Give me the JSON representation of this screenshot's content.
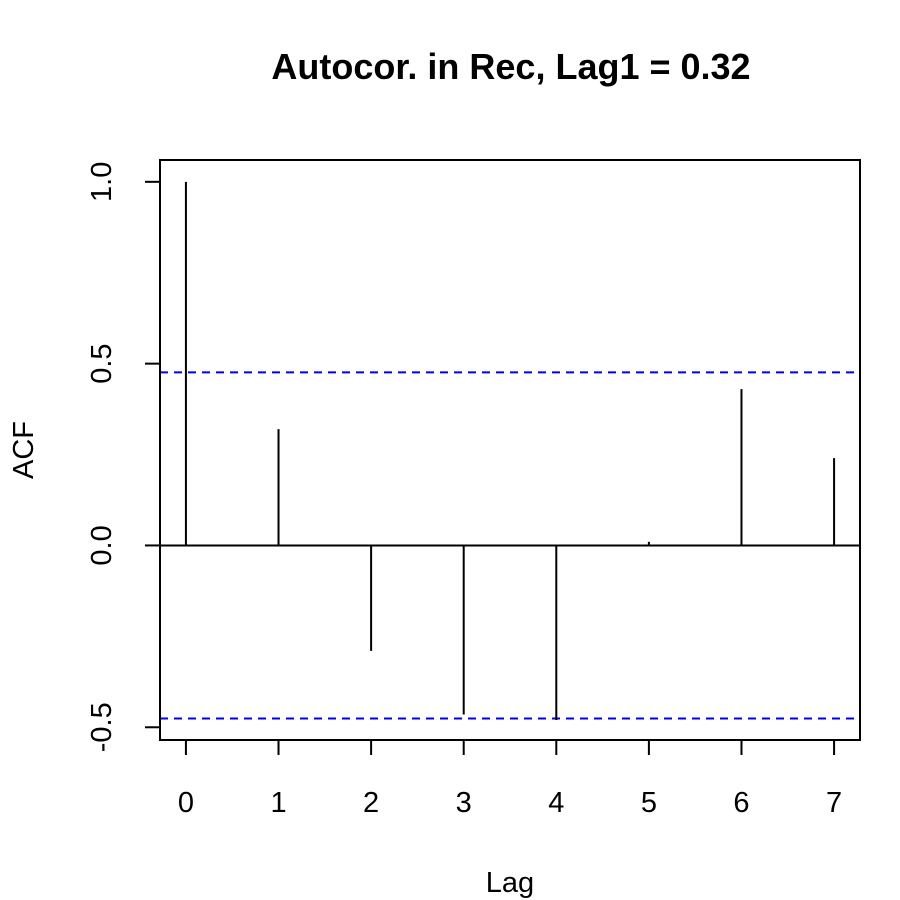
{
  "chart_data": {
    "type": "bar",
    "title": "Autocor. in Rec, Lag1 = 0.32",
    "xlabel": "Lag",
    "ylabel": "ACF",
    "x": [
      0,
      1,
      2,
      3,
      4,
      5,
      6,
      7
    ],
    "values": [
      1.0,
      0.32,
      -0.29,
      -0.465,
      -0.48,
      0.01,
      0.43,
      0.24
    ],
    "x_ticks": [
      "0",
      "1",
      "2",
      "3",
      "4",
      "5",
      "6",
      "7"
    ],
    "y_ticks": [
      "-0.5",
      "0.0",
      "0.5",
      "1.0"
    ],
    "xlim": [
      -0.28,
      7.28
    ],
    "ylim": [
      -0.535,
      1.06
    ],
    "confidence_bound": 0.476,
    "colors": {
      "bars": "#000000",
      "bounds": "#0000ee",
      "zero_line": "#000000"
    },
    "grid": false,
    "legend": "none"
  }
}
